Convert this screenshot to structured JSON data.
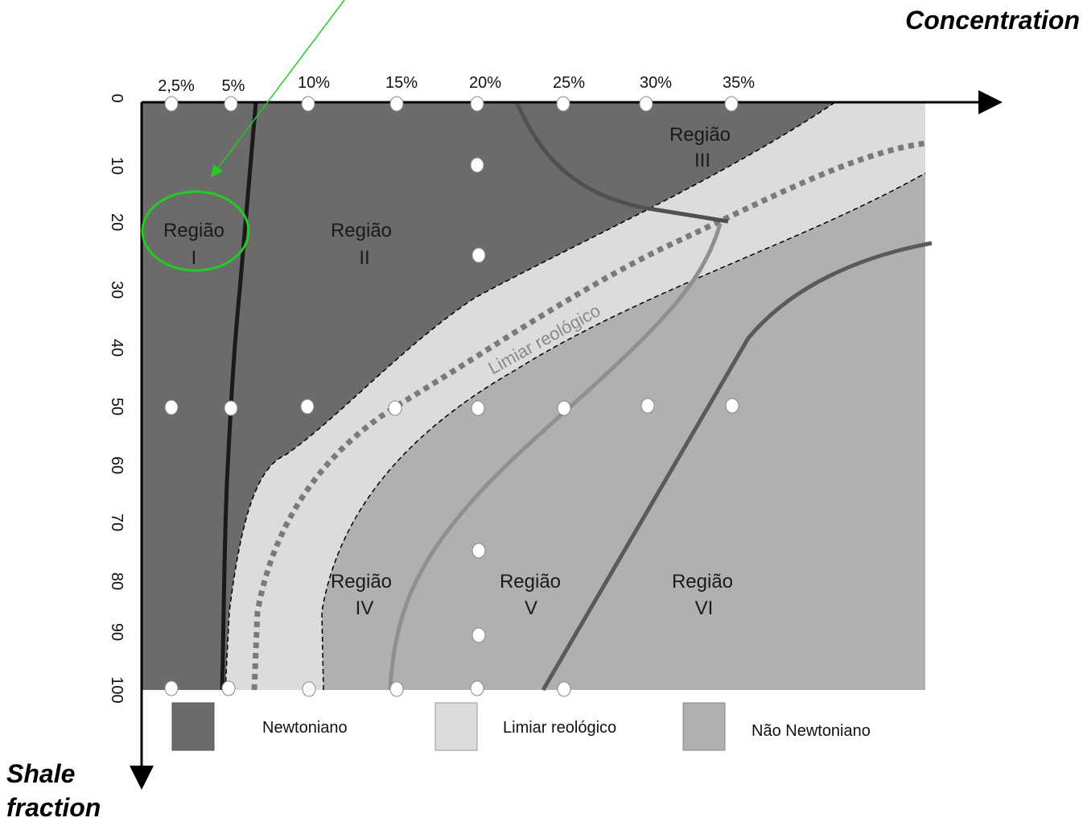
{
  "axes": {
    "x_title": "Concentration",
    "y_title_line1": "Shale",
    "y_title_line2": "fraction",
    "x_ticks": [
      "2,5%",
      "5%",
      "10%",
      "15%",
      "20%",
      "25%",
      "30%",
      "35%"
    ],
    "y_ticks": [
      "0",
      "10",
      "20",
      "30",
      "40",
      "50",
      "60",
      "70",
      "80",
      "90",
      "100"
    ]
  },
  "regions": {
    "r1_word": "Região",
    "r1_num": "I",
    "r2_word": "Região",
    "r2_num": "II",
    "r3_word": "Região",
    "r3_num": "III",
    "r4_word": "Região",
    "r4_num": "IV",
    "r5_word": "Região",
    "r5_num": "V",
    "r6_word": "Região",
    "r6_num": "VI"
  },
  "band_label": "Limiar reológico",
  "legend": {
    "newtonian": "Newtoniano",
    "threshold": "Limiar reológico",
    "non_newtonian": "Não Newtoniano"
  },
  "colors": {
    "newtonian": "#6b6b6b",
    "threshold": "#dcdcdc",
    "non_newtonian": "#b0b0b0",
    "annotation": "#33dd33"
  }
}
